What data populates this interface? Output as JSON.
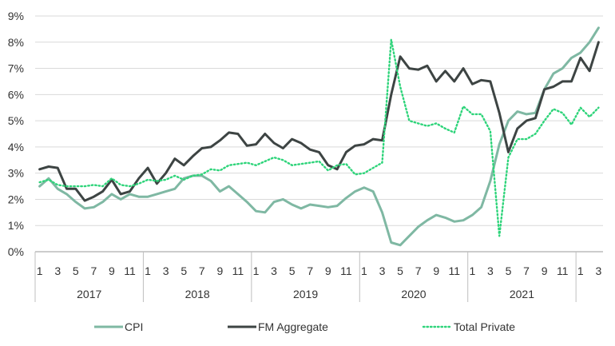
{
  "chart_data": {
    "type": "line",
    "y_unit": "%",
    "ylim": [
      0,
      9
    ],
    "y_ticks": [
      0,
      1,
      2,
      3,
      4,
      5,
      6,
      7,
      8,
      9
    ],
    "y_tick_labels": [
      "0%",
      "1%",
      "2%",
      "3%",
      "4%",
      "5%",
      "6%",
      "7%",
      "8%",
      "9%"
    ],
    "x": [
      "2017-01",
      "2017-02",
      "2017-03",
      "2017-04",
      "2017-05",
      "2017-06",
      "2017-07",
      "2017-08",
      "2017-09",
      "2017-10",
      "2017-11",
      "2017-12",
      "2018-01",
      "2018-02",
      "2018-03",
      "2018-04",
      "2018-05",
      "2018-06",
      "2018-07",
      "2018-08",
      "2018-09",
      "2018-10",
      "2018-11",
      "2018-12",
      "2019-01",
      "2019-02",
      "2019-03",
      "2019-04",
      "2019-05",
      "2019-06",
      "2019-07",
      "2019-08",
      "2019-09",
      "2019-10",
      "2019-11",
      "2019-12",
      "2020-01",
      "2020-02",
      "2020-03",
      "2020-04",
      "2020-05",
      "2020-06",
      "2020-07",
      "2020-08",
      "2020-09",
      "2020-10",
      "2020-11",
      "2020-12",
      "2021-01",
      "2021-02",
      "2021-03",
      "2021-04",
      "2021-05",
      "2021-06",
      "2021-07",
      "2021-08",
      "2021-09",
      "2021-10",
      "2021-11",
      "2021-12",
      "2022-01",
      "2022-02",
      "2022-03"
    ],
    "month_tick_labels": [
      "1",
      "3",
      "5",
      "7",
      "9",
      "11",
      "1",
      "3",
      "5",
      "7",
      "9",
      "11",
      "1",
      "3",
      "5",
      "7",
      "9",
      "11",
      "1",
      "3",
      "5",
      "7",
      "9",
      "11",
      "1",
      "3",
      "5",
      "7",
      "9",
      "11",
      "1",
      "3"
    ],
    "year_labels": [
      "2017",
      "2018",
      "2019",
      "2020",
      "2021"
    ],
    "grid": "horizontal",
    "legend_position": "bottom",
    "series": [
      {
        "name": "CPI",
        "color": "#7fb8a3",
        "style": "solid",
        "values": [
          2.5,
          2.8,
          2.4,
          2.2,
          1.9,
          1.65,
          1.7,
          1.9,
          2.2,
          2.0,
          2.2,
          2.1,
          2.1,
          2.2,
          2.3,
          2.4,
          2.8,
          2.9,
          2.9,
          2.7,
          2.3,
          2.5,
          2.2,
          1.9,
          1.55,
          1.5,
          1.9,
          2.0,
          1.8,
          1.65,
          1.8,
          1.75,
          1.7,
          1.75,
          2.05,
          2.3,
          2.45,
          2.3,
          1.5,
          0.35,
          0.25,
          0.6,
          0.95,
          1.2,
          1.4,
          1.3,
          1.15,
          1.2,
          1.4,
          1.7,
          2.7,
          4.1,
          5.0,
          5.35,
          5.25,
          5.3,
          6.2,
          6.8,
          7.0,
          7.4,
          7.6,
          8.0,
          8.55
        ]
      },
      {
        "name": "FM Aggregate",
        "color": "#3d4443",
        "style": "solid",
        "values": [
          3.15,
          3.25,
          3.2,
          2.4,
          2.4,
          1.95,
          2.1,
          2.3,
          2.75,
          2.2,
          2.3,
          2.8,
          3.2,
          2.6,
          3.0,
          3.55,
          3.3,
          3.65,
          3.95,
          4.0,
          4.25,
          4.55,
          4.5,
          4.05,
          4.1,
          4.5,
          4.15,
          3.95,
          4.3,
          4.15,
          3.9,
          3.8,
          3.3,
          3.15,
          3.8,
          4.05,
          4.1,
          4.3,
          4.25,
          6.0,
          7.45,
          7.0,
          6.95,
          7.1,
          6.5,
          6.9,
          6.5,
          7.0,
          6.4,
          6.55,
          6.5,
          5.3,
          3.8,
          4.7,
          5.0,
          5.1,
          6.2,
          6.3,
          6.5,
          6.5,
          7.4,
          6.9,
          8.0
        ]
      },
      {
        "name": "Total Private",
        "color": "#2ed47a",
        "style": "dotted",
        "values": [
          2.65,
          2.75,
          2.55,
          2.5,
          2.5,
          2.5,
          2.55,
          2.5,
          2.8,
          2.55,
          2.5,
          2.6,
          2.75,
          2.7,
          2.75,
          2.9,
          2.75,
          2.9,
          2.95,
          3.15,
          3.1,
          3.3,
          3.35,
          3.4,
          3.3,
          3.45,
          3.6,
          3.5,
          3.3,
          3.35,
          3.4,
          3.45,
          3.1,
          3.3,
          3.35,
          2.95,
          3.0,
          3.2,
          3.4,
          8.1,
          6.3,
          5.0,
          4.9,
          4.8,
          4.9,
          4.7,
          4.55,
          5.55,
          5.25,
          5.25,
          4.6,
          0.6,
          3.6,
          4.3,
          4.3,
          4.5,
          5.0,
          5.45,
          5.3,
          4.85,
          5.5,
          5.15,
          5.5
        ]
      }
    ]
  }
}
